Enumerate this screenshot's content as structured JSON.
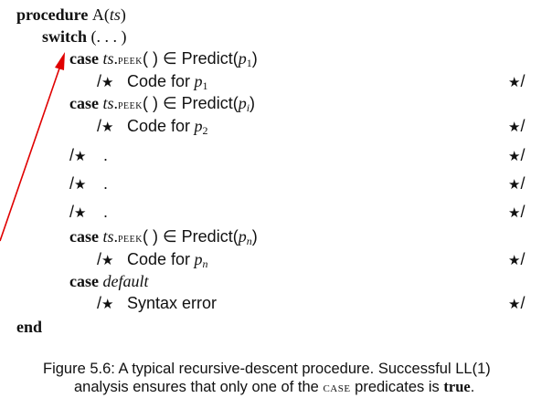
{
  "code": {
    "kw_procedure": "procedure",
    "proc_name": "A(",
    "proc_param": "ts",
    "proc_close": ")",
    "kw_switch": "switch",
    "switch_arg": "(. . . )",
    "kw_case": "case",
    "ts": "ts",
    "dot": ".",
    "peek": "peek",
    "peek_call": "( ) ∈ Predict(",
    "close_paren": ")",
    "p": "p",
    "sub_1": "1",
    "sub_i": "i",
    "sub_2": "2",
    "sub_n": "n",
    "comment_open": "/",
    "comment_close": "/",
    "star": "★",
    "code_for": "Code for",
    "ellipsis_dot": ".",
    "kw_default": "default",
    "syntax_error": "Syntax error",
    "kw_end": "end"
  },
  "caption": {
    "line1": "Figure 5.6: A typical recursive-descent procedure. Successful LL(1)",
    "line2_a": "analysis ensures that only one of the",
    "line2_case": "case",
    "line2_b": "predicates is",
    "line2_true": "true",
    "line2_c": "."
  },
  "colors": {
    "arrow": "#e00000",
    "text": "#111111"
  }
}
